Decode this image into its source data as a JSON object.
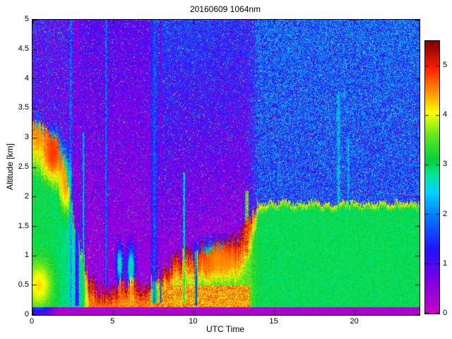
{
  "chart_data": {
    "type": "heatmap",
    "title": "20160609 1064nm",
    "xlabel": "UTC Time",
    "ylabel": "Altitude [km]",
    "x_range": [
      0,
      24
    ],
    "y_range": [
      0,
      5
    ],
    "value_range": [
      0,
      5.5
    ],
    "x_ticks": [
      0,
      5,
      10,
      15,
      20
    ],
    "y_ticks": [
      0,
      0.5,
      1,
      1.5,
      2,
      2.5,
      3,
      3.5,
      4,
      4.5,
      5
    ],
    "colorbar_ticks": [
      0,
      1,
      2,
      3,
      4,
      5
    ],
    "colormap_stops": [
      [
        0.0,
        "#c800c8"
      ],
      [
        0.7,
        "#7800e6"
      ],
      [
        1.3,
        "#1e14ff"
      ],
      [
        2.0,
        "#0082ff"
      ],
      [
        2.45,
        "#00d2ff"
      ],
      [
        2.8,
        "#00e696"
      ],
      [
        3.1,
        "#00d23c"
      ],
      [
        3.6,
        "#64e61e"
      ],
      [
        4.05,
        "#ffff00"
      ],
      [
        4.5,
        "#ff8c00"
      ],
      [
        4.95,
        "#ff1e00"
      ],
      [
        5.5,
        "#7d0000"
      ]
    ],
    "t_step": 0.5,
    "layer_top_km": [
      3.25,
      3.2,
      3.1,
      2.95,
      2.5,
      1.7,
      1.1,
      0.6,
      0.45,
      0.4,
      0.42,
      0.5,
      0.55,
      0.5,
      0.45,
      0.55,
      0.7,
      0.85,
      1.0,
      1.05,
      0.95,
      1.1,
      1.15,
      1.2,
      1.25,
      1.3,
      1.4,
      1.65,
      1.85,
      1.9,
      1.9,
      1.92,
      1.9,
      1.88,
      1.9,
      1.92,
      1.88,
      1.86,
      1.9,
      1.92,
      1.9,
      1.88,
      1.9,
      1.9,
      1.92,
      1.9,
      1.88,
      1.9,
      1.9
    ],
    "layer_value": [
      3.1,
      3.1,
      3.1,
      3.0,
      2.9,
      2.8,
      2.9,
      4.5,
      4.6,
      4.6,
      4.6,
      4.5,
      4.4,
      4.5,
      4.6,
      4.3,
      3.6,
      3.5,
      3.5,
      3.5,
      3.4,
      3.4,
      3.4,
      3.4,
      3.5,
      3.5,
      3.6,
      3.5,
      3.1,
      3.05,
      3.05,
      3.05,
      3.05,
      3.05,
      3.05,
      3.05,
      3.05,
      3.05,
      3.05,
      3.05,
      3.05,
      3.05,
      3.05,
      3.05,
      3.05,
      3.05,
      3.05,
      3.05,
      3.05
    ],
    "cap_value": [
      4.7,
      4.5,
      4.8,
      4.9,
      4.4,
      3.4,
      3.6,
      5.3,
      5.4,
      5.4,
      5.3,
      5.2,
      5.3,
      5.4,
      5.3,
      5.2,
      5.4,
      5.4,
      5.3,
      5.4,
      5.2,
      5.4,
      5.4,
      5.3,
      5.4,
      5.4,
      5.4,
      5.0,
      4.3,
      4.15,
      4.15,
      4.15,
      4.15,
      4.15,
      4.15,
      4.15,
      4.15,
      4.15,
      4.15,
      4.15,
      4.15,
      4.15,
      4.15,
      4.15,
      4.15,
      4.15,
      4.15,
      4.15,
      4.15
    ],
    "rim_start_frac": [
      0.72,
      0.72,
      0.7,
      0.68,
      0.7,
      0.8,
      0.8,
      0.45,
      0.45,
      0.45,
      0.45,
      0.45,
      0.45,
      0.45,
      0.45,
      0.45,
      0.42,
      0.42,
      0.42,
      0.42,
      0.42,
      0.42,
      0.42,
      0.42,
      0.42,
      0.42,
      0.45,
      0.6,
      0.9,
      0.94,
      0.94,
      0.94,
      0.94,
      0.94,
      0.94,
      0.94,
      0.94,
      0.94,
      0.94,
      0.94,
      0.94,
      0.94,
      0.94,
      0.94,
      0.94,
      0.94,
      0.94,
      0.94,
      0.94
    ],
    "bg_value": [
      0.85,
      0.85,
      0.8,
      0.75,
      0.7,
      0.6,
      0.5,
      0.35,
      0.35,
      0.35,
      0.35,
      0.35,
      0.35,
      0.35,
      0.35,
      0.35,
      0.35,
      0.35,
      0.35,
      0.35,
      0.35,
      0.35,
      0.35,
      0.35,
      0.35,
      0.35,
      0.4,
      0.8,
      1.5,
      1.55,
      1.55,
      1.55,
      1.55,
      1.55,
      1.55,
      1.55,
      1.55,
      1.55,
      1.55,
      1.55,
      1.55,
      1.55,
      1.55,
      1.55,
      1.55,
      1.55,
      1.55,
      1.55,
      1.55
    ],
    "bg_slope_per_km": [
      0.1,
      0.1,
      0.1,
      0.1,
      0.1,
      0.1,
      0.1,
      0.12,
      0.12,
      0.12,
      0.12,
      0.12,
      0.12,
      0.12,
      0.12,
      0.12,
      0.28,
      0.28,
      0.28,
      0.28,
      0.28,
      0.28,
      0.28,
      0.28,
      0.28,
      0.28,
      0.25,
      0.15,
      0.06,
      0.06,
      0.06,
      0.06,
      0.06,
      0.06,
      0.06,
      0.06,
      0.06,
      0.06,
      0.06,
      0.06,
      0.06,
      0.06,
      0.06,
      0.06,
      0.06,
      0.06,
      0.06,
      0.06,
      0.06
    ],
    "noise_amp": [
      2.0,
      2.0,
      2.0,
      2.0,
      2.0,
      1.8,
      1.6,
      1.15,
      1.15,
      1.15,
      1.15,
      1.15,
      1.15,
      1.15,
      1.15,
      1.2,
      1.5,
      1.5,
      1.5,
      1.5,
      1.5,
      1.5,
      1.5,
      1.5,
      1.5,
      1.5,
      1.6,
      1.8,
      1.9,
      1.9,
      1.9,
      1.9,
      1.9,
      1.9,
      1.9,
      1.9,
      1.9,
      1.9,
      1.9,
      1.9,
      1.9,
      1.9,
      1.9,
      1.9,
      1.9,
      1.9,
      1.9,
      1.9,
      1.9
    ],
    "surface_band": {
      "alt_km": 0.13,
      "value": 0.25
    },
    "low_enhance": {
      "t0": 3.5,
      "t1": 13.5,
      "alt": 0.5,
      "value": 4.4
    },
    "top_jitter": {
      "split_t": 14,
      "early": 0.15,
      "late": 0.05
    },
    "speckle": {
      "bright_prob": 0.05,
      "bright_boost": 1.8
    },
    "columns": [
      {
        "t": 2.35,
        "w": 0.12,
        "top": 5.0,
        "bottom": 0.15,
        "val": 2.0
      },
      {
        "t": 2.75,
        "w": 0.18,
        "top": 5.0,
        "bottom": 0.15,
        "val": 0.5
      },
      {
        "t": 3.15,
        "w": 0.1,
        "top": 3.1,
        "bottom": 0.15,
        "val": 2.8
      },
      {
        "t": 4.55,
        "w": 0.1,
        "top": 5.0,
        "bottom": 0.5,
        "val": 2.1
      },
      {
        "t": 7.55,
        "w": 0.28,
        "top": 5.0,
        "bottom": 0.2,
        "val": 1.7
      },
      {
        "t": 7.95,
        "w": 0.08,
        "top": 5.0,
        "bottom": 0.2,
        "val": 0.4
      },
      {
        "t": 9.4,
        "w": 0.12,
        "top": 2.4,
        "bottom": 0.2,
        "val": 3.0
      },
      {
        "t": 10.15,
        "w": 0.1,
        "top": 2.5,
        "bottom": 0.15,
        "val": 0.5
      },
      {
        "t": 13.3,
        "w": 0.15,
        "top": 2.1,
        "bottom": 1.0,
        "val": 4.8
      },
      {
        "t": 19.0,
        "w": 0.15,
        "top": 3.8,
        "bottom": 1.9,
        "val": 2.5
      },
      {
        "t": 19.6,
        "w": 0.1,
        "top": 3.0,
        "bottom": 1.9,
        "val": 2.4
      }
    ],
    "blobs": [
      {
        "t": 0.4,
        "alt": 0.5,
        "rt": 0.8,
        "ra": 0.4,
        "val": 4.3
      },
      {
        "t": 1.2,
        "alt": 2.7,
        "rt": 0.55,
        "ra": 0.35,
        "val": 4.9
      },
      {
        "t": 0.35,
        "alt": 3.0,
        "rt": 0.25,
        "ra": 0.25,
        "val": 4.5
      },
      {
        "t": 2.0,
        "alt": 2.2,
        "rt": 0.3,
        "ra": 0.45,
        "val": 4.5
      },
      {
        "t": 5.4,
        "alt": 0.85,
        "rt": 0.2,
        "ra": 0.3,
        "val": 3.2
      },
      {
        "t": 6.1,
        "alt": 0.8,
        "rt": 0.25,
        "ra": 0.35,
        "val": 3.3
      },
      {
        "t": 11.5,
        "alt": 0.95,
        "rt": 1.2,
        "ra": 0.25,
        "val": 4.5
      }
    ],
    "seed": 7
  }
}
